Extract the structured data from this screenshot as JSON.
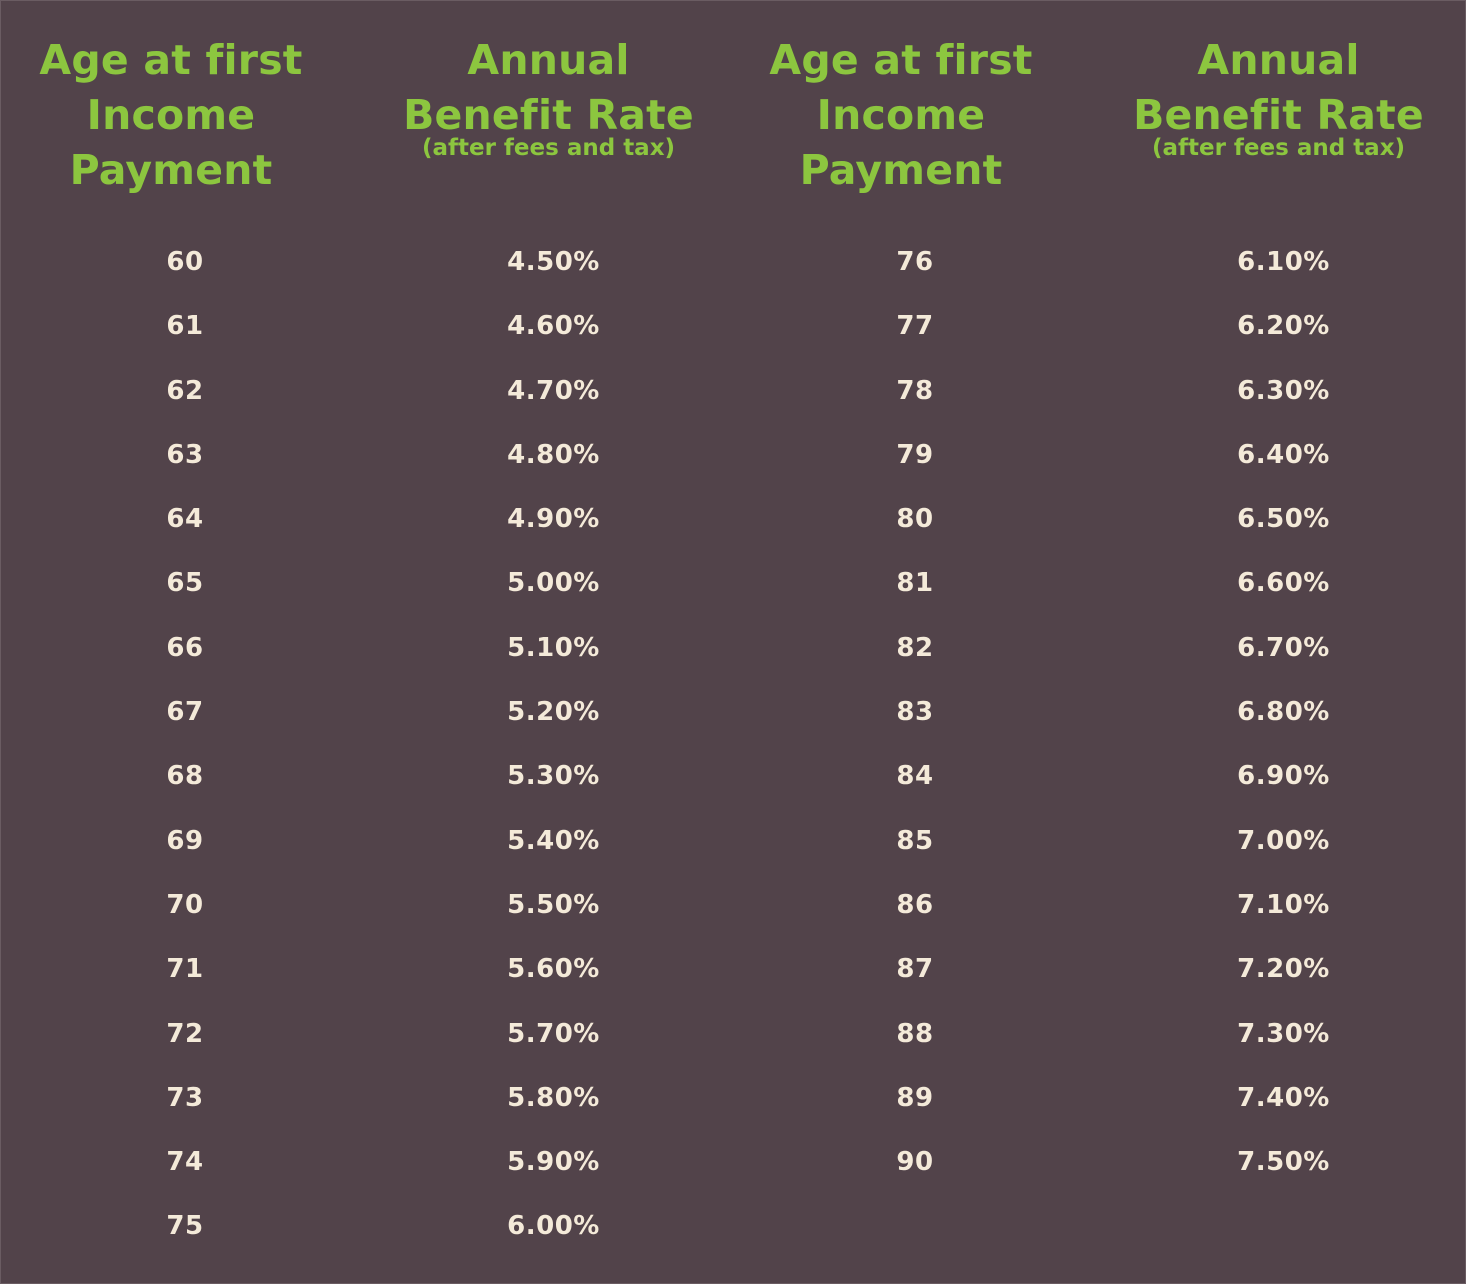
{
  "headers": {
    "age_line1": "Age at first",
    "age_line2": "Income",
    "age_line3": "Payment",
    "rate_line1": "Annual",
    "rate_line2": "Benefit Rate",
    "rate_note": "(after fees and tax)"
  },
  "table_left": {
    "ages": [
      "60",
      "61",
      "62",
      "63",
      "64",
      "65",
      "66",
      "67",
      "68",
      "69",
      "70",
      "71",
      "72",
      "73",
      "74",
      "75"
    ],
    "rates": [
      "4.50%",
      "4.60%",
      "4.70%",
      "4.80%",
      "4.90%",
      "5.00%",
      "5.10%",
      "5.20%",
      "5.30%",
      "5.40%",
      "5.50%",
      "5.60%",
      "5.70%",
      "5.80%",
      "5.90%",
      "6.00%"
    ]
  },
  "table_right": {
    "ages": [
      "76",
      "77",
      "78",
      "79",
      "80",
      "81",
      "82",
      "83",
      "84",
      "85",
      "86",
      "87",
      "88",
      "89",
      "90"
    ],
    "rates": [
      "6.10%",
      "6.20%",
      "6.30%",
      "6.40%",
      "6.50%",
      "6.60%",
      "6.70%",
      "6.80%",
      "6.90%",
      "7.00%",
      "7.10%",
      "7.20%",
      "7.30%",
      "7.40%",
      "7.50%"
    ]
  },
  "colors": {
    "background": "#52434a",
    "header_text": "#8cc63f",
    "cell_text": "#f4ead9"
  }
}
